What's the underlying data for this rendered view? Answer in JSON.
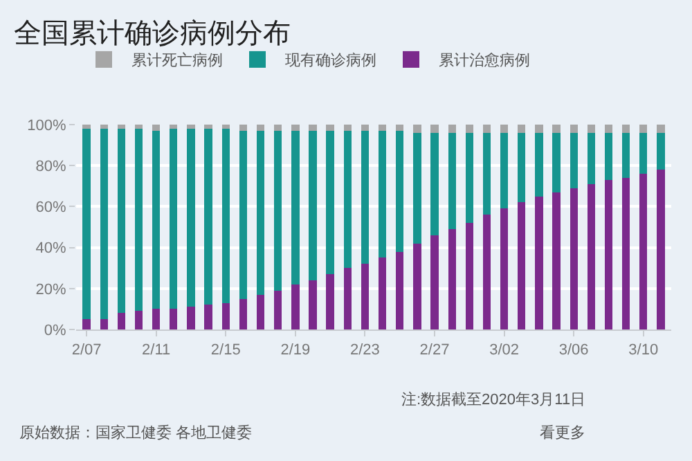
{
  "chart_data": {
    "type": "bar",
    "stacked": true,
    "title": "全国累计确诊病例分布",
    "categories": [
      "2/07",
      null,
      null,
      null,
      "2/11",
      null,
      null,
      null,
      "2/15",
      null,
      null,
      null,
      "2/19",
      null,
      null,
      null,
      "2/23",
      null,
      null,
      null,
      "2/27",
      null,
      null,
      null,
      "3/02",
      null,
      null,
      null,
      "3/06",
      null,
      null,
      null,
      "3/10",
      null
    ],
    "series": [
      {
        "name": "累计治愈病例",
        "color": "#7b2a8c",
        "values": [
          5,
          5,
          8,
          9,
          10,
          10,
          11,
          12,
          13,
          15,
          17,
          19,
          22,
          24,
          27,
          30,
          32,
          35,
          38,
          42,
          46,
          49,
          52,
          56,
          59,
          62,
          65,
          67,
          69,
          71,
          73,
          74,
          76,
          78
        ]
      },
      {
        "name": "现有确诊病例",
        "color": "#16958f",
        "values": [
          93,
          93,
          90,
          89,
          87,
          88,
          87,
          86,
          85,
          82,
          80,
          78,
          75,
          73,
          70,
          67,
          65,
          62,
          59,
          54,
          50,
          47,
          44,
          40,
          37,
          34,
          31,
          29,
          27,
          25,
          23,
          22,
          20,
          18
        ]
      },
      {
        "name": "累计死亡病例",
        "color": "#a6a6a6",
        "values": [
          2,
          2,
          2,
          2,
          3,
          2,
          2,
          2,
          2,
          3,
          3,
          3,
          3,
          3,
          3,
          3,
          3,
          3,
          3,
          4,
          4,
          4,
          4,
          4,
          4,
          4,
          4,
          4,
          4,
          4,
          4,
          4,
          4,
          4
        ]
      }
    ],
    "ylim": [
      0,
      100
    ],
    "yticks": [
      {
        "value": 0,
        "label": "0%"
      },
      {
        "value": 20,
        "label": "20%"
      },
      {
        "value": 40,
        "label": "40%"
      },
      {
        "value": 60,
        "label": "60%"
      },
      {
        "value": 80,
        "label": "80%"
      },
      {
        "value": 100,
        "label": "100%"
      }
    ],
    "grid": "y",
    "legend": "top left",
    "annotations": [
      "注:数据截至2020年3月11日",
      "原始数据：国家卫健委 各地卫健委",
      "看更多"
    ]
  }
}
